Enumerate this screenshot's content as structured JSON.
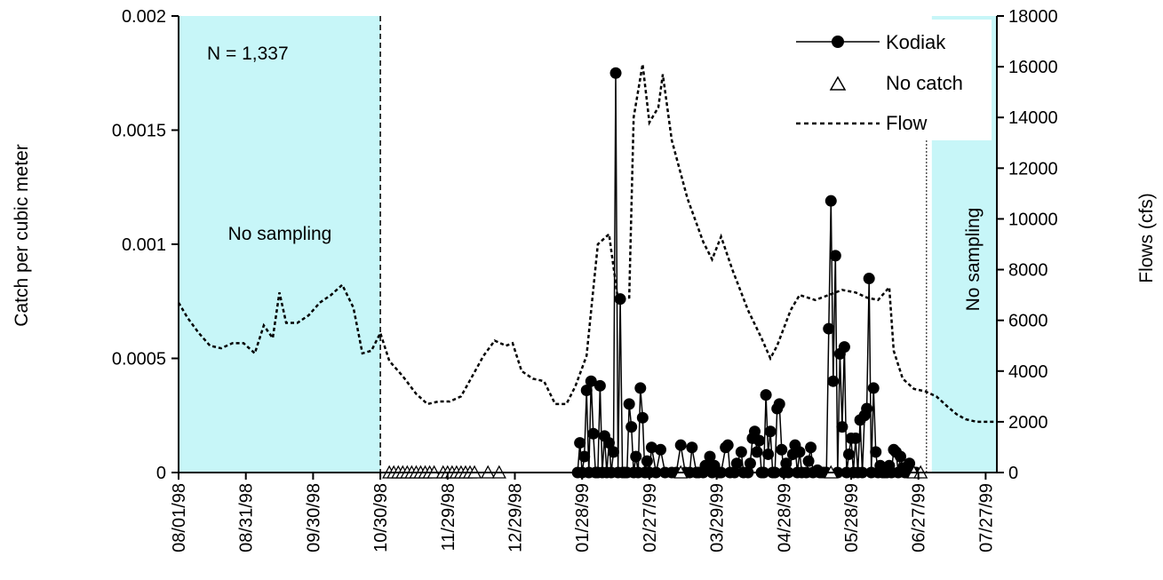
{
  "chart_data": {
    "type": "line",
    "title": "",
    "ylabel": "Catch per cubic meter",
    "y2label": "Flows (cfs)",
    "xlabel": "",
    "ylim": [
      0,
      0.002
    ],
    "y2lim": [
      0,
      18000
    ],
    "xlim": [
      "1998-08-01",
      "1999-08-01"
    ],
    "grid": false,
    "legend_position": "top-right",
    "x_ticks": [
      "1998-08-01",
      "1998-08-31",
      "1998-09-30",
      "1998-10-30",
      "1998-11-29",
      "1998-12-29",
      "1999-01-28",
      "1999-02-27",
      "1999-03-29",
      "1999-04-28",
      "1999-05-28",
      "1999-06-27",
      "1999-07-27"
    ],
    "x_tick_labels": [
      "08/01/98",
      "08/31/98",
      "09/30/98",
      "10/30/98",
      "11/29/98",
      "12/29/98",
      "01/28/99",
      "02/27/99",
      "03/29/99",
      "04/28/99",
      "05/28/99",
      "06/27/99",
      "07/27/99"
    ],
    "y_tick_labels": [
      "0",
      "0.0005",
      "0.001",
      "0.0015",
      "0.002"
    ],
    "y_ticks": [
      0,
      0.0005,
      0.001,
      0.0015,
      0.002
    ],
    "y2_ticks": [
      0,
      2000,
      4000,
      6000,
      8000,
      10000,
      12000,
      14000,
      16000,
      18000
    ],
    "y2_tick_labels": [
      "0",
      "2000",
      "4000",
      "6000",
      "8000",
      "10000",
      "12000",
      "14000",
      "16000",
      "18000"
    ],
    "shaded_regions": [
      {
        "label": "No sampling",
        "start": "1998-08-01",
        "end": "1998-10-30"
      },
      {
        "label": "No sampling",
        "start": "1999-07-03",
        "end": "1999-08-01"
      }
    ],
    "annotations": [
      {
        "text": "N = 1,337"
      },
      {
        "text": "No sampling"
      },
      {
        "text": "No sampling",
        "rotation": "vertical"
      }
    ],
    "series": [
      {
        "name": "Flow",
        "axis": "right",
        "style": "dotted",
        "points": [
          [
            "1998-08-01",
            6700
          ],
          [
            "1998-08-05",
            6100
          ],
          [
            "1998-08-10",
            5500
          ],
          [
            "1998-08-15",
            5000
          ],
          [
            "1998-08-20",
            4900
          ],
          [
            "1998-08-25",
            5100
          ],
          [
            "1998-08-30",
            5100
          ],
          [
            "1998-09-04",
            4700
          ],
          [
            "1998-09-08",
            5800
          ],
          [
            "1998-09-12",
            5300
          ],
          [
            "1998-09-15",
            7100
          ],
          [
            "1998-09-18",
            5900
          ],
          [
            "1998-09-23",
            5900
          ],
          [
            "1998-09-28",
            6200
          ],
          [
            "1998-10-03",
            6700
          ],
          [
            "1998-10-08",
            7000
          ],
          [
            "1998-10-13",
            7400
          ],
          [
            "1998-10-18",
            6500
          ],
          [
            "1998-10-22",
            4700
          ],
          [
            "1998-10-26",
            4800
          ],
          [
            "1998-10-30",
            5500
          ],
          [
            "1998-11-03",
            4400
          ],
          [
            "1998-11-09",
            3800
          ],
          [
            "1998-11-15",
            3100
          ],
          [
            "1998-11-20",
            2700
          ],
          [
            "1998-11-25",
            2800
          ],
          [
            "1998-11-30",
            2800
          ],
          [
            "1998-12-05",
            3000
          ],
          [
            "1998-12-10",
            3800
          ],
          [
            "1998-12-15",
            4600
          ],
          [
            "1998-12-20",
            5200
          ],
          [
            "1998-12-25",
            5000
          ],
          [
            "1998-12-28",
            5100
          ],
          [
            "1999-01-01",
            4000
          ],
          [
            "1999-01-06",
            3700
          ],
          [
            "1999-01-11",
            3600
          ],
          [
            "1999-01-16",
            2700
          ],
          [
            "1999-01-21",
            2700
          ],
          [
            "1999-01-25",
            3400
          ],
          [
            "1999-01-30",
            4600
          ],
          [
            "1999-02-04",
            9000
          ],
          [
            "1999-02-09",
            9400
          ],
          [
            "1999-02-13",
            6800
          ],
          [
            "1999-02-18",
            6900
          ],
          [
            "1999-02-20",
            14000
          ],
          [
            "1999-02-24",
            16100
          ],
          [
            "1999-02-27",
            13800
          ],
          [
            "1999-03-03",
            14400
          ],
          [
            "1999-03-05",
            15700
          ],
          [
            "1999-03-09",
            13100
          ],
          [
            "1999-03-16",
            10800
          ],
          [
            "1999-03-23",
            9100
          ],
          [
            "1999-03-27",
            8400
          ],
          [
            "1999-03-31",
            9300
          ],
          [
            "1999-04-05",
            8000
          ],
          [
            "1999-04-12",
            6400
          ],
          [
            "1999-04-18",
            5300
          ],
          [
            "1999-04-22",
            4500
          ],
          [
            "1999-04-25",
            5000
          ],
          [
            "1999-05-01",
            6400
          ],
          [
            "1999-05-05",
            7000
          ],
          [
            "1999-05-12",
            6800
          ],
          [
            "1999-05-18",
            7000
          ],
          [
            "1999-05-24",
            7200
          ],
          [
            "1999-05-30",
            7100
          ],
          [
            "1999-06-04",
            6900
          ],
          [
            "1999-06-09",
            6800
          ],
          [
            "1999-06-14",
            7300
          ],
          [
            "1999-06-16",
            4800
          ],
          [
            "1999-06-20",
            3700
          ],
          [
            "1999-06-25",
            3300
          ],
          [
            "1999-06-30",
            3200
          ],
          [
            "1999-07-05",
            3000
          ],
          [
            "1999-07-10",
            2600
          ],
          [
            "1999-07-14",
            2300
          ],
          [
            "1999-07-18",
            2100
          ],
          [
            "1999-07-23",
            2000
          ],
          [
            "1999-07-31",
            2000
          ]
        ]
      },
      {
        "name": "Kodiak",
        "axis": "left",
        "style": "solid-line-filled-circles",
        "points": [
          [
            "1999-01-26",
            0
          ],
          [
            "1999-01-27",
            0.00013
          ],
          [
            "1999-01-28",
            0
          ],
          [
            "1999-01-29",
            7e-05
          ],
          [
            "1999-01-30",
            0.00036
          ],
          [
            "1999-01-31",
            0.0
          ],
          [
            "1999-02-01",
            0.0004
          ],
          [
            "1999-02-02",
            0.00017
          ],
          [
            "1999-02-03",
            0.0
          ],
          [
            "1999-02-04",
            0.0
          ],
          [
            "1999-02-05",
            0.00038
          ],
          [
            "1999-02-06",
            0.0
          ],
          [
            "1999-02-07",
            0.00016
          ],
          [
            "1999-02-08",
            0.0
          ],
          [
            "1999-02-09",
            0.00013
          ],
          [
            "1999-02-10",
            0.0
          ],
          [
            "1999-02-11",
            9e-05
          ],
          [
            "1999-02-12",
            0.00175
          ],
          [
            "1999-02-13",
            0.0
          ],
          [
            "1999-02-14",
            0.00076
          ],
          [
            "1999-02-15",
            0.0
          ],
          [
            "1999-02-16",
            0.0
          ],
          [
            "1999-02-17",
            0.0
          ],
          [
            "1999-02-18",
            0.0003
          ],
          [
            "1999-02-19",
            0.0002
          ],
          [
            "1999-02-20",
            0.0
          ],
          [
            "1999-02-21",
            7e-05
          ],
          [
            "1999-02-22",
            0.0
          ],
          [
            "1999-02-23",
            0.00037
          ],
          [
            "1999-02-24",
            0.00024
          ],
          [
            "1999-02-25",
            0.0
          ],
          [
            "1999-02-26",
            5e-05
          ],
          [
            "1999-02-27",
            0.0
          ],
          [
            "1999-02-28",
            0.00011
          ],
          [
            "1999-03-02",
            0.0
          ],
          [
            "1999-03-04",
            0.0001
          ],
          [
            "1999-03-06",
            0.0
          ],
          [
            "1999-03-09",
            0.0
          ],
          [
            "1999-03-11",
            0.0
          ],
          [
            "1999-03-13",
            0.00012
          ],
          [
            "1999-03-15",
            0.0
          ],
          [
            "1999-03-17",
            0.0
          ],
          [
            "1999-03-18",
            0.00011
          ],
          [
            "1999-03-20",
            0.0
          ],
          [
            "1999-03-21",
            0.0
          ],
          [
            "1999-03-23",
            0.0
          ],
          [
            "1999-03-24",
            3e-05
          ],
          [
            "1999-03-26",
            7e-05
          ],
          [
            "1999-03-27",
            0.0
          ],
          [
            "1999-03-28",
            3e-05
          ],
          [
            "1999-03-30",
            0.0
          ],
          [
            "1999-03-31",
            0.0
          ],
          [
            "1999-04-02",
            0.00011
          ],
          [
            "1999-04-03",
            0.00012
          ],
          [
            "1999-04-04",
            0.0
          ],
          [
            "1999-04-06",
            0.0
          ],
          [
            "1999-04-07",
            4e-05
          ],
          [
            "1999-04-09",
            9e-05
          ],
          [
            "1999-04-10",
            0.0
          ],
          [
            "1999-04-12",
            0.0
          ],
          [
            "1999-04-13",
            4e-05
          ],
          [
            "1999-04-14",
            0.00015
          ],
          [
            "1999-04-15",
            0.00018
          ],
          [
            "1999-04-16",
            9e-05
          ],
          [
            "1999-04-17",
            0.00014
          ],
          [
            "1999-04-18",
            0.0
          ],
          [
            "1999-04-19",
            0.0
          ],
          [
            "1999-04-20",
            0.00034
          ],
          [
            "1999-04-21",
            8e-05
          ],
          [
            "1999-04-22",
            0.00018
          ],
          [
            "1999-04-23",
            0.0
          ],
          [
            "1999-04-24",
            0.0
          ],
          [
            "1999-04-25",
            0.00028
          ],
          [
            "1999-04-26",
            0.0003
          ],
          [
            "1999-04-27",
            0.0001
          ],
          [
            "1999-04-28",
            0.0
          ],
          [
            "1999-04-29",
            4e-05
          ],
          [
            "1999-04-30",
            0.0
          ],
          [
            "1999-05-02",
            8e-05
          ],
          [
            "1999-05-03",
            0.00012
          ],
          [
            "1999-05-04",
            0.0
          ],
          [
            "1999-05-05",
            9e-05
          ],
          [
            "1999-05-06",
            0.0
          ],
          [
            "1999-05-08",
            0.0
          ],
          [
            "1999-05-09",
            5e-05
          ],
          [
            "1999-05-10",
            0.00011
          ],
          [
            "1999-05-11",
            0.0
          ],
          [
            "1999-05-13",
            1e-05
          ],
          [
            "1999-05-14",
            0.0
          ],
          [
            "1999-05-15",
            0.0
          ],
          [
            "1999-05-16",
            0.0
          ],
          [
            "1999-05-17",
            0.0
          ],
          [
            "1999-05-18",
            0.00063
          ],
          [
            "1999-05-19",
            0.00119
          ],
          [
            "1999-05-20",
            0.0004
          ],
          [
            "1999-05-21",
            0.00095
          ],
          [
            "1999-05-22",
            0.0
          ],
          [
            "1999-05-23",
            0.00052
          ],
          [
            "1999-05-24",
            0.0002
          ],
          [
            "1999-05-25",
            0.00055
          ],
          [
            "1999-05-26",
            0.0
          ],
          [
            "1999-05-27",
            8e-05
          ],
          [
            "1999-05-28",
            0.00015
          ],
          [
            "1999-05-29",
            0.0
          ],
          [
            "1999-05-30",
            0.00015
          ],
          [
            "1999-05-31",
            0.0
          ],
          [
            "1999-06-01",
            0.00023
          ],
          [
            "1999-06-02",
            0.0
          ],
          [
            "1999-06-03",
            0.00025
          ],
          [
            "1999-06-04",
            0.00028
          ],
          [
            "1999-06-05",
            0.00085
          ],
          [
            "1999-06-06",
            0.0
          ],
          [
            "1999-06-07",
            0.00037
          ],
          [
            "1999-06-08",
            9e-05
          ],
          [
            "1999-06-09",
            0.0
          ],
          [
            "1999-06-10",
            3e-05
          ],
          [
            "1999-06-11",
            0.0
          ],
          [
            "1999-06-12",
            0.0
          ],
          [
            "1999-06-13",
            0.0
          ],
          [
            "1999-06-14",
            3e-05
          ],
          [
            "1999-06-15",
            0.0
          ],
          [
            "1999-06-16",
            0.0001
          ],
          [
            "1999-06-17",
            9e-05
          ],
          [
            "1999-06-18",
            0.0
          ],
          [
            "1999-06-19",
            7e-05
          ],
          [
            "1999-06-20",
            2e-05
          ],
          [
            "1999-06-21",
            0.0
          ],
          [
            "1999-06-22",
            0.0
          ],
          [
            "1999-06-23",
            4e-05
          ],
          [
            "1999-06-24",
            0.0
          ],
          [
            "1999-06-25",
            0.0
          ],
          [
            "1999-06-26",
            0.0
          ]
        ]
      },
      {
        "name": "No catch",
        "axis": "left",
        "style": "open-triangles",
        "points": [
          [
            "1998-11-03",
            0
          ],
          [
            "1998-11-05",
            0
          ],
          [
            "1998-11-07",
            0
          ],
          [
            "1998-11-09",
            0
          ],
          [
            "1998-11-11",
            0
          ],
          [
            "1998-11-13",
            0
          ],
          [
            "1998-11-15",
            0
          ],
          [
            "1998-11-17",
            0
          ],
          [
            "1998-11-19",
            0
          ],
          [
            "1998-11-21",
            0
          ],
          [
            "1998-11-23",
            0
          ],
          [
            "1998-11-27",
            0
          ],
          [
            "1998-11-29",
            0
          ],
          [
            "1998-12-01",
            0
          ],
          [
            "1998-12-03",
            0
          ],
          [
            "1998-12-05",
            0
          ],
          [
            "1998-12-07",
            0
          ],
          [
            "1998-12-09",
            0
          ],
          [
            "1998-12-11",
            0
          ],
          [
            "1998-12-17",
            0
          ],
          [
            "1998-12-22",
            0
          ],
          [
            "1999-03-13",
            0
          ],
          [
            "1999-05-19",
            0
          ],
          [
            "1999-06-25",
            0
          ],
          [
            "1999-06-28",
            0
          ]
        ]
      }
    ],
    "legend": [
      {
        "label": "Kodiak",
        "marker": "line-circle"
      },
      {
        "label": "No catch",
        "marker": "triangle"
      },
      {
        "label": "Flow",
        "marker": "dotted"
      }
    ]
  }
}
